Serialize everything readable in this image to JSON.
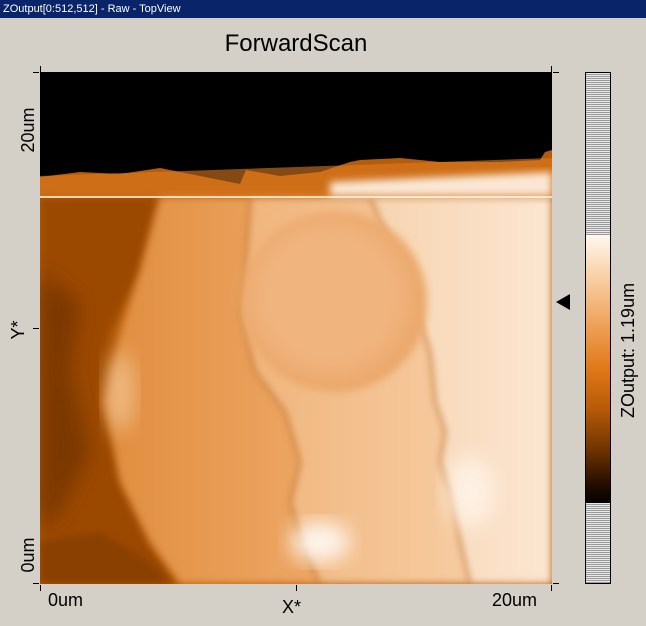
{
  "window": {
    "title": "ZOutput[0:512,512] - Raw - TopView"
  },
  "plot": {
    "title": "ForwardScan",
    "y_axis": {
      "label": "Y*",
      "max_label": "20um",
      "min_label": "0um"
    },
    "x_axis": {
      "label": "X*",
      "min_label": "0um",
      "max_label": "20um"
    }
  },
  "colorbar": {
    "label": "ZOutput: 1.19um",
    "marker_icon": "triangle-left-icon",
    "colors": {
      "dark": "#000000",
      "mid": "#e07010",
      "light": "#fff4e8"
    }
  },
  "colors": {
    "window_bg": "#d4d0c8",
    "titlebar_bg": "#0a246a",
    "titlebar_text": "#ffffff"
  }
}
